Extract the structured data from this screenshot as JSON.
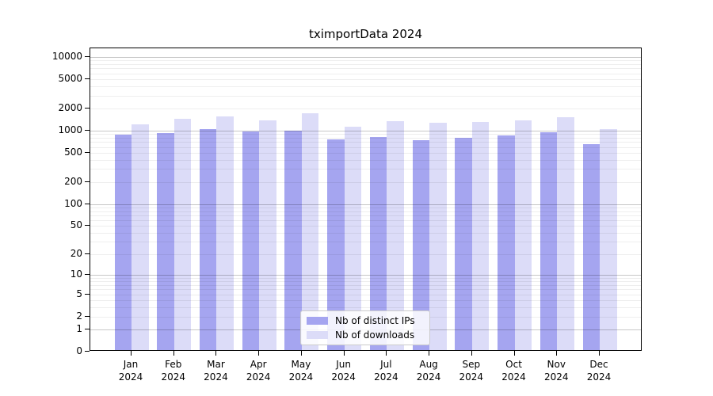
{
  "chart_data": {
    "type": "bar",
    "title": "tximportData 2024",
    "categories": [
      "Jan 2024",
      "Feb 2024",
      "Mar 2024",
      "Apr 2024",
      "May 2024",
      "Jun 2024",
      "Jul 2024",
      "Aug 2024",
      "Sep 2024",
      "Oct 2024",
      "Nov 2024",
      "Dec 2024"
    ],
    "series": [
      {
        "name": "Nb of distinct IPs",
        "color": "#a5a5f0",
        "values": [
          850,
          890,
          1000,
          920,
          950,
          730,
          775,
          710,
          760,
          815,
          900,
          630
        ]
      },
      {
        "name": "Nb of downloads",
        "color": "#dcdcf8",
        "values": [
          1150,
          1380,
          1470,
          1320,
          1630,
          1080,
          1270,
          1220,
          1240,
          1320,
          1440,
          1010
        ]
      }
    ],
    "y_scale": "log10(value+1)",
    "y_tick_labels": [
      0,
      1,
      2,
      5,
      10,
      20,
      50,
      100,
      200,
      500,
      1000,
      2000,
      5000,
      10000
    ],
    "ylim": [
      0,
      13000
    ],
    "grid": true,
    "legend_position": "bottom-center",
    "bar_colors": {
      "distinct_ips": "#a5a5f0",
      "downloads": "#dcdcf8"
    }
  }
}
